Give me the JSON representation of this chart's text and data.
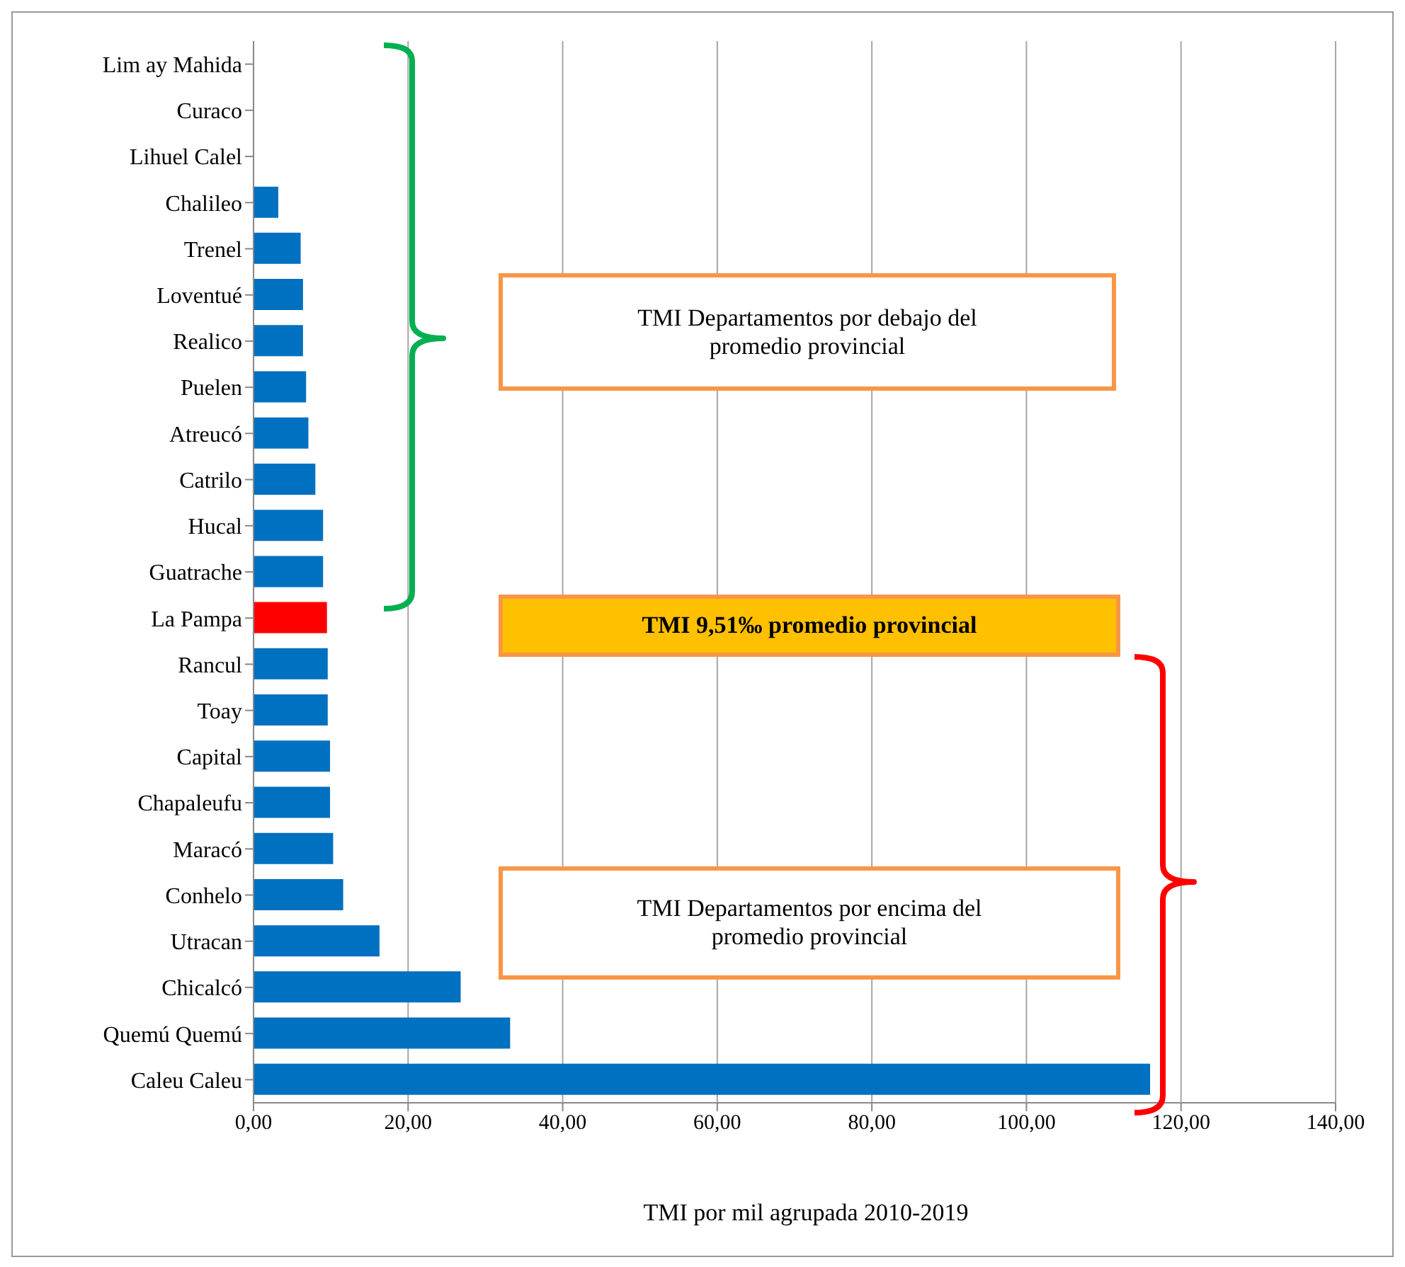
{
  "chart_data": {
    "type": "bar",
    "orientation": "horizontal",
    "categories": [
      "Lim ay Mahida",
      "Curaco",
      "Lihuel Calel",
      "Chalileo",
      "Trenel",
      "Loventué",
      "Realico",
      "Puelen",
      "Atreucó",
      "Catrilo",
      "Hucal",
      "Guatrache",
      "La Pampa",
      "Rancul",
      "Toay",
      "Capital",
      "Chapaleufu",
      "Maracó",
      "Conhelo",
      "Utracan",
      "Chicalcó",
      "Quemú Quemú",
      "Caleu Caleu"
    ],
    "values": [
      0,
      0,
      0,
      3.2,
      6.1,
      6.4,
      6.4,
      6.8,
      7.1,
      8.0,
      9.0,
      9.0,
      9.5,
      9.6,
      9.6,
      9.9,
      9.9,
      10.3,
      11.6,
      16.3,
      26.8,
      33.2,
      116
    ],
    "colors": [
      "#0070c0",
      "#0070c0",
      "#0070c0",
      "#0070c0",
      "#0070c0",
      "#0070c0",
      "#0070c0",
      "#0070c0",
      "#0070c0",
      "#0070c0",
      "#0070c0",
      "#0070c0",
      "#ff0000",
      "#0070c0",
      "#0070c0",
      "#0070c0",
      "#0070c0",
      "#0070c0",
      "#0070c0",
      "#0070c0",
      "#0070c0",
      "#0070c0",
      "#0070c0"
    ],
    "xlim": [
      0,
      140
    ],
    "xticks": [
      {
        "value": 0,
        "label": "0,00"
      },
      {
        "value": 20,
        "label": "20,00"
      },
      {
        "value": 40,
        "label": "40,00"
      },
      {
        "value": 60,
        "label": "60,00"
      },
      {
        "value": 80,
        "label": "80,00"
      },
      {
        "value": 100,
        "label": "100,00"
      },
      {
        "value": 120,
        "label": "120,00"
      },
      {
        "value": 140,
        "label": "140,00"
      }
    ],
    "xlabel": "TMI por mil agrupada 2010-2019",
    "grid": "x",
    "annotations": [
      "TMI Departamentos por debajo del promedio provincial",
      "TMI 9,51‰ promedio provincial",
      "TMI Departamentos por encima del promedio provincial"
    ]
  }
}
